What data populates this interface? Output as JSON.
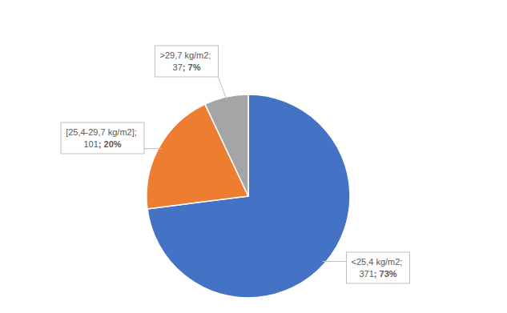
{
  "chart_data": {
    "type": "pie",
    "categories": [
      "<25,4 kg/m2",
      "[25,4-29,7 kg/m2]",
      ">29,7 kg/m2"
    ],
    "values": [
      73,
      20,
      7
    ],
    "value_labels": [
      "73%",
      "20%",
      "7%"
    ],
    "counts": [
      371,
      101,
      37
    ],
    "label_separator": "; ",
    "colors": [
      "#4472c4",
      "#ed7d31",
      "#a5a5a5"
    ],
    "data_labels": true
  }
}
